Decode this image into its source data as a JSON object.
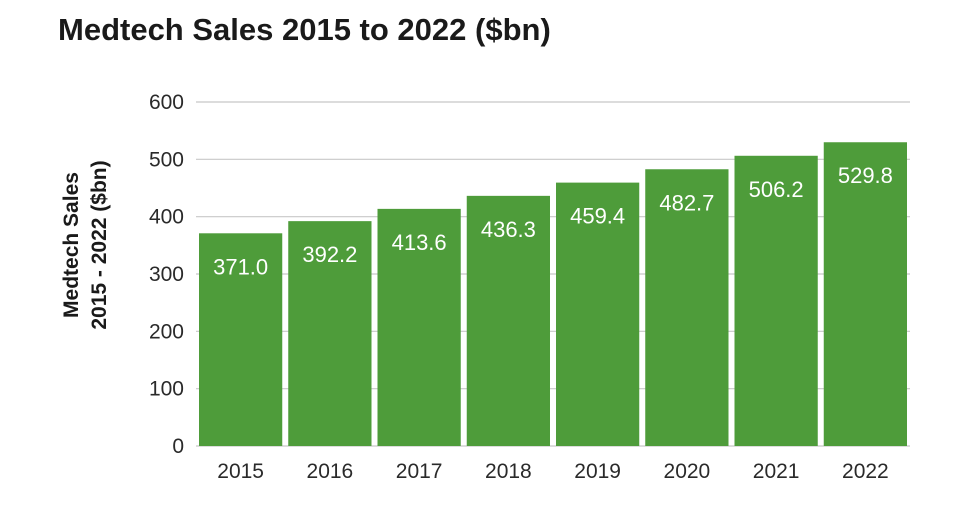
{
  "chart_data": {
    "type": "bar",
    "title": "Medtech Sales 2015 to 2022 ($bn)",
    "ylabel_lines": [
      "Medtech Sales",
      "2015 - 2022 ($bn)"
    ],
    "xlabel": "",
    "categories": [
      "2015",
      "2016",
      "2017",
      "2018",
      "2019",
      "2020",
      "2021",
      "2022"
    ],
    "values": [
      371.0,
      392.2,
      413.6,
      436.3,
      459.4,
      482.7,
      506.2,
      529.8
    ],
    "value_labels": [
      "371.0",
      "392.2",
      "413.6",
      "436.3",
      "459.4",
      "482.7",
      "506.2",
      "529.8"
    ],
    "ylim": [
      0,
      600
    ],
    "yticks": [
      0,
      100,
      200,
      300,
      400,
      500,
      600
    ],
    "grid": true,
    "bar_color": "#4e9c3a",
    "grid_color": "#c8c8c8"
  }
}
